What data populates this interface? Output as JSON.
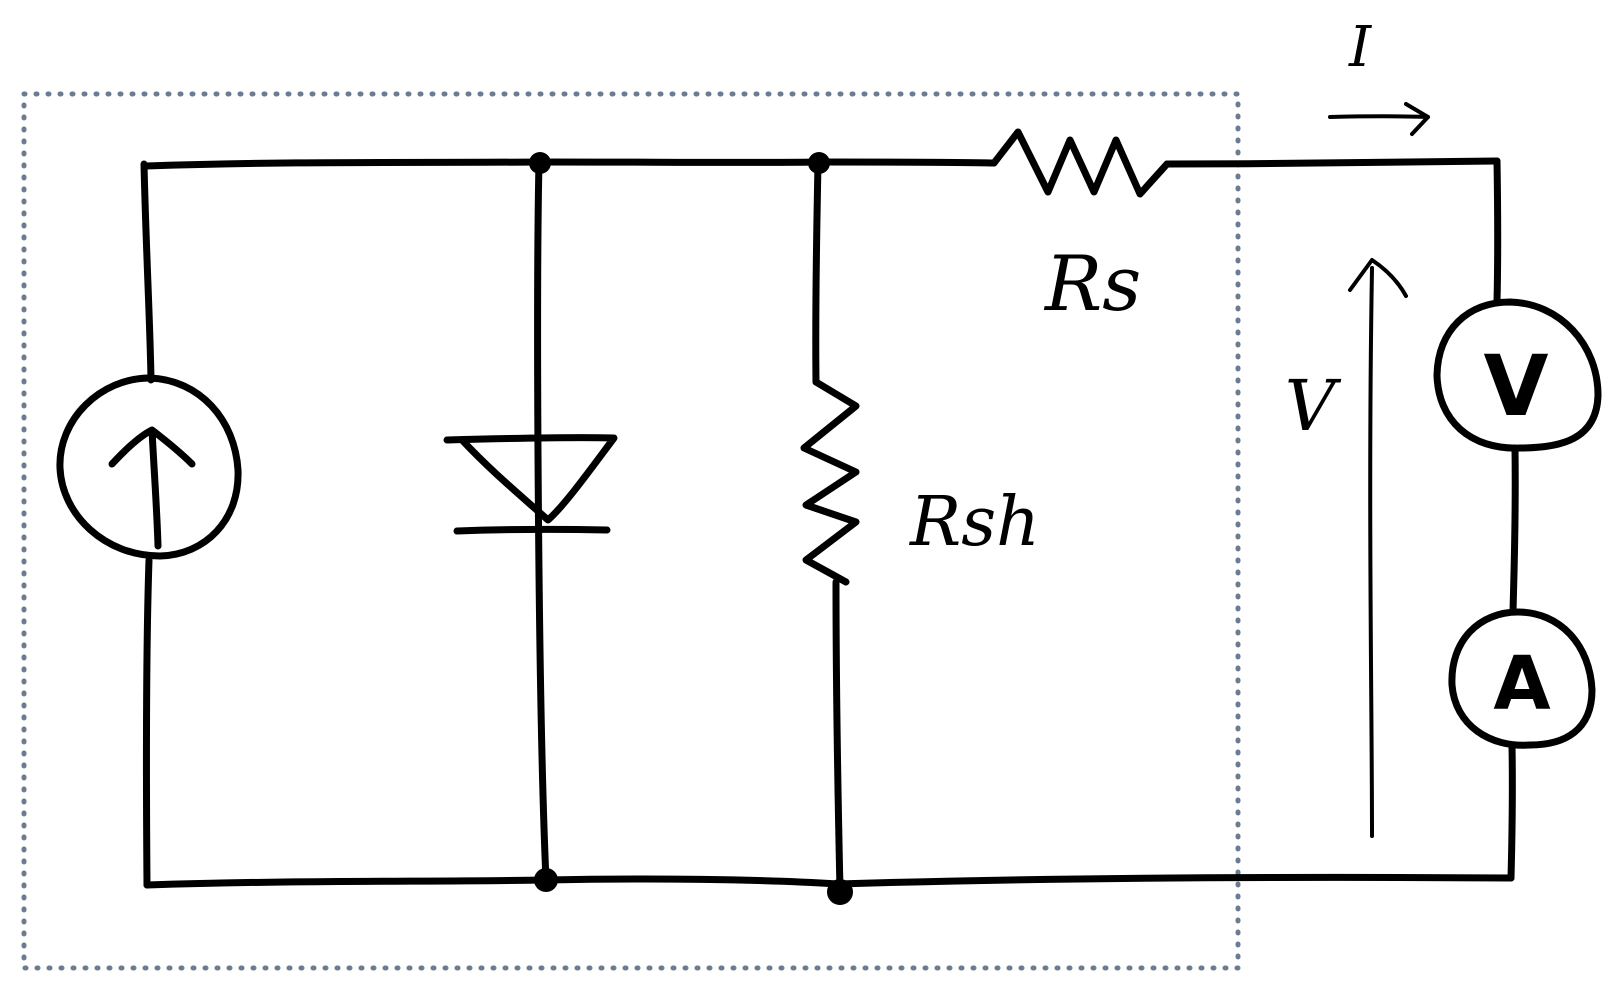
{
  "diagram": {
    "labels": {
      "series_resistor": "Rs",
      "shunt_resistor": "Rsh",
      "voltage": "V",
      "current": "I"
    },
    "meters": {
      "voltmeter": "V",
      "ammeter": "A"
    },
    "colors": {
      "line": "#000000",
      "boundary": "#6b7b93"
    }
  }
}
